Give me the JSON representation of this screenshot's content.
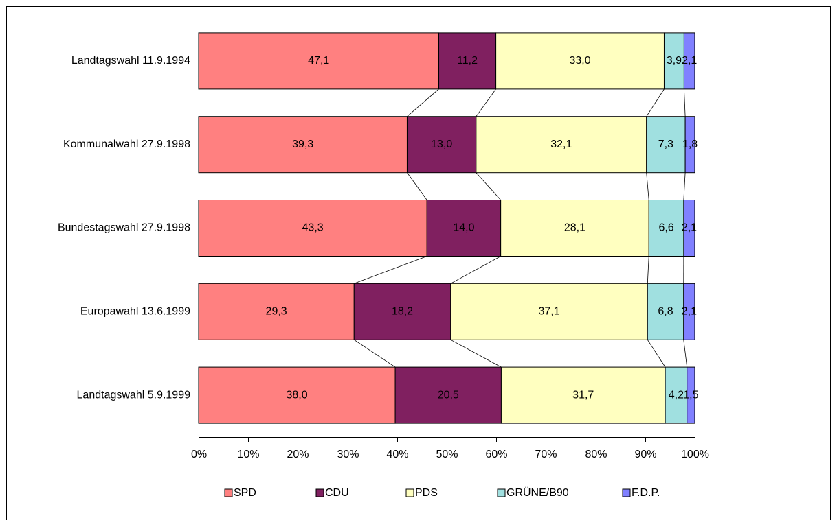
{
  "chart_data": {
    "type": "bar",
    "orientation": "horizontal",
    "stacked": "percent",
    "categories": [
      "Landtagswahl 11.9.1994",
      "Kommunalwahl 27.9.1998",
      "Bundestagswahl 27.9.1998",
      "Europawahl 13.6.1999",
      "Landtagswahl 5.9.1999"
    ],
    "series": [
      {
        "name": "SPD",
        "color": "#ff8080",
        "values": [
          47.1,
          39.3,
          43.3,
          29.3,
          38.0
        ],
        "value_labels": [
          "47,1",
          "39,3",
          "43,3",
          "29,3",
          "38,0"
        ]
      },
      {
        "name": "CDU",
        "color": "#802060",
        "values": [
          11.2,
          13.0,
          14.0,
          18.2,
          20.5
        ],
        "value_labels": [
          "11,2",
          "13,0",
          "14,0",
          "18,2",
          "20,5"
        ]
      },
      {
        "name": "PDS",
        "color": "#ffffc0",
        "values": [
          33.0,
          32.1,
          28.1,
          37.1,
          31.7
        ],
        "value_labels": [
          "33,0",
          "32,1",
          "28,1",
          "37,1",
          "31,7"
        ]
      },
      {
        "name": "GRÜNE/B90",
        "color": "#a0e0e0",
        "values": [
          3.9,
          7.3,
          6.6,
          6.8,
          4.2
        ],
        "value_labels": [
          "3,9",
          "7,3",
          "6,6",
          "6,8",
          "4,2"
        ]
      },
      {
        "name": "F.D.P.",
        "color": "#8080ff",
        "values": [
          2.1,
          1.8,
          2.1,
          2.1,
          1.5
        ],
        "value_labels": [
          "2,1",
          "1,8",
          "2,1",
          "2,1",
          "1,5"
        ]
      }
    ],
    "xlim": [
      0,
      100
    ],
    "xticks": [
      {
        "value": 0,
        "label": "0%"
      },
      {
        "value": 10,
        "label": "10%"
      },
      {
        "value": 20,
        "label": "20%"
      },
      {
        "value": 30,
        "label": "30%"
      },
      {
        "value": 40,
        "label": "40%"
      },
      {
        "value": 50,
        "label": "50%"
      },
      {
        "value": 60,
        "label": "60%"
      },
      {
        "value": 70,
        "label": "70%"
      },
      {
        "value": 80,
        "label": "80%"
      },
      {
        "value": 90,
        "label": "90%"
      },
      {
        "value": 100,
        "label": "100%"
      }
    ],
    "legend": "bottom",
    "series_lines": true
  }
}
